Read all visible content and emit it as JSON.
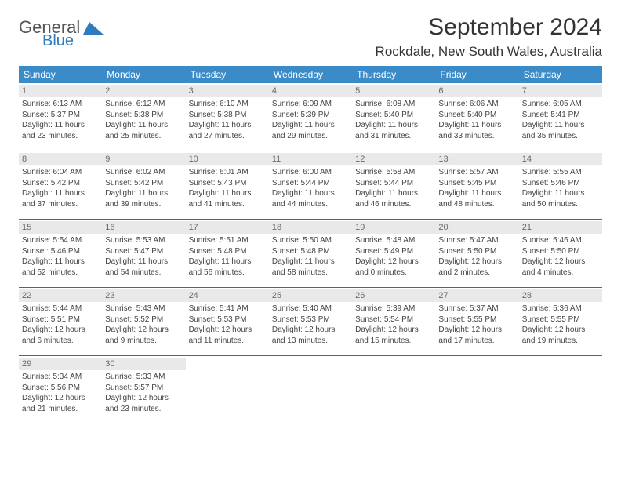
{
  "logo": {
    "general": "General",
    "blue": "Blue",
    "tri_color": "#2f7bbf"
  },
  "title": "September 2024",
  "location": "Rockdale, New South Wales, Australia",
  "colors": {
    "header_bg": "#3b8bc9",
    "header_text": "#ffffff",
    "daynum_bg": "#e9e9e9",
    "daynum_text": "#6a6a6a",
    "rule": "#2f6fa8",
    "body_text": "#444444"
  },
  "typography": {
    "title_fontsize": 30,
    "location_fontsize": 17,
    "dayheader_fontsize": 12,
    "daynum_fontsize": 11,
    "info_fontsize": 10
  },
  "day_names": [
    "Sunday",
    "Monday",
    "Tuesday",
    "Wednesday",
    "Thursday",
    "Friday",
    "Saturday"
  ],
  "days": [
    {
      "n": "1",
      "sunrise": "Sunrise: 6:13 AM",
      "sunset": "Sunset: 5:37 PM",
      "d1": "Daylight: 11 hours",
      "d2": "and 23 minutes."
    },
    {
      "n": "2",
      "sunrise": "Sunrise: 6:12 AM",
      "sunset": "Sunset: 5:38 PM",
      "d1": "Daylight: 11 hours",
      "d2": "and 25 minutes."
    },
    {
      "n": "3",
      "sunrise": "Sunrise: 6:10 AM",
      "sunset": "Sunset: 5:38 PM",
      "d1": "Daylight: 11 hours",
      "d2": "and 27 minutes."
    },
    {
      "n": "4",
      "sunrise": "Sunrise: 6:09 AM",
      "sunset": "Sunset: 5:39 PM",
      "d1": "Daylight: 11 hours",
      "d2": "and 29 minutes."
    },
    {
      "n": "5",
      "sunrise": "Sunrise: 6:08 AM",
      "sunset": "Sunset: 5:40 PM",
      "d1": "Daylight: 11 hours",
      "d2": "and 31 minutes."
    },
    {
      "n": "6",
      "sunrise": "Sunrise: 6:06 AM",
      "sunset": "Sunset: 5:40 PM",
      "d1": "Daylight: 11 hours",
      "d2": "and 33 minutes."
    },
    {
      "n": "7",
      "sunrise": "Sunrise: 6:05 AM",
      "sunset": "Sunset: 5:41 PM",
      "d1": "Daylight: 11 hours",
      "d2": "and 35 minutes."
    },
    {
      "n": "8",
      "sunrise": "Sunrise: 6:04 AM",
      "sunset": "Sunset: 5:42 PM",
      "d1": "Daylight: 11 hours",
      "d2": "and 37 minutes."
    },
    {
      "n": "9",
      "sunrise": "Sunrise: 6:02 AM",
      "sunset": "Sunset: 5:42 PM",
      "d1": "Daylight: 11 hours",
      "d2": "and 39 minutes."
    },
    {
      "n": "10",
      "sunrise": "Sunrise: 6:01 AM",
      "sunset": "Sunset: 5:43 PM",
      "d1": "Daylight: 11 hours",
      "d2": "and 41 minutes."
    },
    {
      "n": "11",
      "sunrise": "Sunrise: 6:00 AM",
      "sunset": "Sunset: 5:44 PM",
      "d1": "Daylight: 11 hours",
      "d2": "and 44 minutes."
    },
    {
      "n": "12",
      "sunrise": "Sunrise: 5:58 AM",
      "sunset": "Sunset: 5:44 PM",
      "d1": "Daylight: 11 hours",
      "d2": "and 46 minutes."
    },
    {
      "n": "13",
      "sunrise": "Sunrise: 5:57 AM",
      "sunset": "Sunset: 5:45 PM",
      "d1": "Daylight: 11 hours",
      "d2": "and 48 minutes."
    },
    {
      "n": "14",
      "sunrise": "Sunrise: 5:55 AM",
      "sunset": "Sunset: 5:46 PM",
      "d1": "Daylight: 11 hours",
      "d2": "and 50 minutes."
    },
    {
      "n": "15",
      "sunrise": "Sunrise: 5:54 AM",
      "sunset": "Sunset: 5:46 PM",
      "d1": "Daylight: 11 hours",
      "d2": "and 52 minutes."
    },
    {
      "n": "16",
      "sunrise": "Sunrise: 5:53 AM",
      "sunset": "Sunset: 5:47 PM",
      "d1": "Daylight: 11 hours",
      "d2": "and 54 minutes."
    },
    {
      "n": "17",
      "sunrise": "Sunrise: 5:51 AM",
      "sunset": "Sunset: 5:48 PM",
      "d1": "Daylight: 11 hours",
      "d2": "and 56 minutes."
    },
    {
      "n": "18",
      "sunrise": "Sunrise: 5:50 AM",
      "sunset": "Sunset: 5:48 PM",
      "d1": "Daylight: 11 hours",
      "d2": "and 58 minutes."
    },
    {
      "n": "19",
      "sunrise": "Sunrise: 5:48 AM",
      "sunset": "Sunset: 5:49 PM",
      "d1": "Daylight: 12 hours",
      "d2": "and 0 minutes."
    },
    {
      "n": "20",
      "sunrise": "Sunrise: 5:47 AM",
      "sunset": "Sunset: 5:50 PM",
      "d1": "Daylight: 12 hours",
      "d2": "and 2 minutes."
    },
    {
      "n": "21",
      "sunrise": "Sunrise: 5:46 AM",
      "sunset": "Sunset: 5:50 PM",
      "d1": "Daylight: 12 hours",
      "d2": "and 4 minutes."
    },
    {
      "n": "22",
      "sunrise": "Sunrise: 5:44 AM",
      "sunset": "Sunset: 5:51 PM",
      "d1": "Daylight: 12 hours",
      "d2": "and 6 minutes."
    },
    {
      "n": "23",
      "sunrise": "Sunrise: 5:43 AM",
      "sunset": "Sunset: 5:52 PM",
      "d1": "Daylight: 12 hours",
      "d2": "and 9 minutes."
    },
    {
      "n": "24",
      "sunrise": "Sunrise: 5:41 AM",
      "sunset": "Sunset: 5:53 PM",
      "d1": "Daylight: 12 hours",
      "d2": "and 11 minutes."
    },
    {
      "n": "25",
      "sunrise": "Sunrise: 5:40 AM",
      "sunset": "Sunset: 5:53 PM",
      "d1": "Daylight: 12 hours",
      "d2": "and 13 minutes."
    },
    {
      "n": "26",
      "sunrise": "Sunrise: 5:39 AM",
      "sunset": "Sunset: 5:54 PM",
      "d1": "Daylight: 12 hours",
      "d2": "and 15 minutes."
    },
    {
      "n": "27",
      "sunrise": "Sunrise: 5:37 AM",
      "sunset": "Sunset: 5:55 PM",
      "d1": "Daylight: 12 hours",
      "d2": "and 17 minutes."
    },
    {
      "n": "28",
      "sunrise": "Sunrise: 5:36 AM",
      "sunset": "Sunset: 5:55 PM",
      "d1": "Daylight: 12 hours",
      "d2": "and 19 minutes."
    },
    {
      "n": "29",
      "sunrise": "Sunrise: 5:34 AM",
      "sunset": "Sunset: 5:56 PM",
      "d1": "Daylight: 12 hours",
      "d2": "and 21 minutes."
    },
    {
      "n": "30",
      "sunrise": "Sunrise: 5:33 AM",
      "sunset": "Sunset: 5:57 PM",
      "d1": "Daylight: 12 hours",
      "d2": "and 23 minutes."
    }
  ]
}
